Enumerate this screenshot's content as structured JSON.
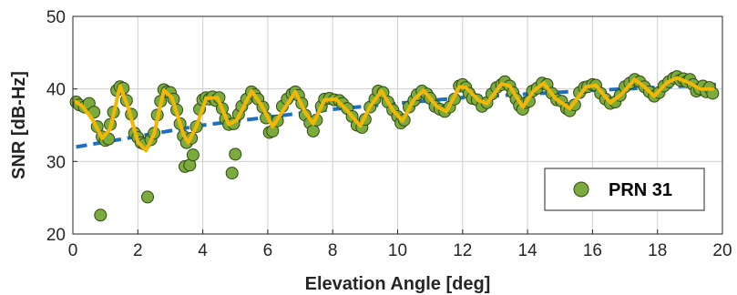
{
  "chart_data": {
    "type": "scatter",
    "title": "",
    "xlabel": "Elevation Angle [deg]",
    "ylabel": "SNR [dB-Hz]",
    "xlim": [
      0,
      20
    ],
    "ylim": [
      20,
      50
    ],
    "xticks": [
      0,
      2,
      4,
      6,
      8,
      10,
      12,
      14,
      16,
      18,
      20
    ],
    "yticks": [
      20,
      30,
      40,
      50
    ],
    "grid": true,
    "legend_position": "bottom-right",
    "legend": [
      "PRN 31"
    ],
    "colors": {
      "points_fill": "#7bab3c",
      "points_edge": "#2f4a12",
      "smooth_line": "#f2b705",
      "trend_line": "#1f6fbf",
      "grid": "#cfcfcf"
    },
    "series": [
      {
        "name": "PRN 31",
        "kind": "scatter",
        "points": [
          [
            0.1,
            38.2
          ],
          [
            0.2,
            37.8
          ],
          [
            0.35,
            37.5
          ],
          [
            0.5,
            38.0
          ],
          [
            0.65,
            36.8
          ],
          [
            0.75,
            34.8
          ],
          [
            0.85,
            22.6
          ],
          [
            0.9,
            33.4
          ],
          [
            1.0,
            32.9
          ],
          [
            1.1,
            33.1
          ],
          [
            1.15,
            35.1
          ],
          [
            1.25,
            36.8
          ],
          [
            1.35,
            39.8
          ],
          [
            1.45,
            40.3
          ],
          [
            1.55,
            40.1
          ],
          [
            1.65,
            38.4
          ],
          [
            1.8,
            36.5
          ],
          [
            1.9,
            33.9
          ],
          [
            2.0,
            33.3
          ],
          [
            2.1,
            32.6
          ],
          [
            2.2,
            32.4
          ],
          [
            2.3,
            25.1
          ],
          [
            2.4,
            33.0
          ],
          [
            2.5,
            33.9
          ],
          [
            2.6,
            36.4
          ],
          [
            2.7,
            38.3
          ],
          [
            2.8,
            39.9
          ],
          [
            2.9,
            39.6
          ],
          [
            3.0,
            39.5
          ],
          [
            3.1,
            38.6
          ],
          [
            3.2,
            37.1
          ],
          [
            3.3,
            35.2
          ],
          [
            3.4,
            33.5
          ],
          [
            3.45,
            29.3
          ],
          [
            3.5,
            32.6
          ],
          [
            3.6,
            29.5
          ],
          [
            3.65,
            33.2
          ],
          [
            3.7,
            30.9
          ],
          [
            3.8,
            34.8
          ],
          [
            3.9,
            37.2
          ],
          [
            4.0,
            38.5
          ],
          [
            4.1,
            38.8
          ],
          [
            4.2,
            38.6
          ],
          [
            4.3,
            38.9
          ],
          [
            4.4,
            38.4
          ],
          [
            4.5,
            38.8
          ],
          [
            4.6,
            37.3
          ],
          [
            4.7,
            35.9
          ],
          [
            4.8,
            35.1
          ],
          [
            4.9,
            28.4
          ],
          [
            4.95,
            35.2
          ],
          [
            5.0,
            31.0
          ],
          [
            5.1,
            36.5
          ],
          [
            5.2,
            37.6
          ],
          [
            5.35,
            38.6
          ],
          [
            5.5,
            39.6
          ],
          [
            5.6,
            39.2
          ],
          [
            5.7,
            38.6
          ],
          [
            5.85,
            37.5
          ],
          [
            5.95,
            36.0
          ],
          [
            6.05,
            34.0
          ],
          [
            6.15,
            34.2
          ],
          [
            6.3,
            35.6
          ],
          [
            6.45,
            37.6
          ],
          [
            6.6,
            38.6
          ],
          [
            6.75,
            39.3
          ],
          [
            6.85,
            39.6
          ],
          [
            6.95,
            39.1
          ],
          [
            7.05,
            38.0
          ],
          [
            7.15,
            36.4
          ],
          [
            7.3,
            35.3
          ],
          [
            7.4,
            34.2
          ],
          [
            7.5,
            35.7
          ],
          [
            7.65,
            37.6
          ],
          [
            7.75,
            38.6
          ],
          [
            7.9,
            38.7
          ],
          [
            8.05,
            38.5
          ],
          [
            8.2,
            38.4
          ],
          [
            8.3,
            38.0
          ],
          [
            8.45,
            37.3
          ],
          [
            8.6,
            36.2
          ],
          [
            8.75,
            35.0
          ],
          [
            8.9,
            34.7
          ],
          [
            9.0,
            35.8
          ],
          [
            9.15,
            37.5
          ],
          [
            9.3,
            38.6
          ],
          [
            9.4,
            39.7
          ],
          [
            9.55,
            39.5
          ],
          [
            9.7,
            38.2
          ],
          [
            9.85,
            37.1
          ],
          [
            10.0,
            36.2
          ],
          [
            10.1,
            35.3
          ],
          [
            10.2,
            35.7
          ],
          [
            10.35,
            37.5
          ],
          [
            10.5,
            38.4
          ],
          [
            10.6,
            39.2
          ],
          [
            10.75,
            39.7
          ],
          [
            10.9,
            39.3
          ],
          [
            11.0,
            38.7
          ],
          [
            11.15,
            37.6
          ],
          [
            11.3,
            37.2
          ],
          [
            11.45,
            36.9
          ],
          [
            11.6,
            37.5
          ],
          [
            11.75,
            38.6
          ],
          [
            11.9,
            40.4
          ],
          [
            12.0,
            40.6
          ],
          [
            12.1,
            40.2
          ],
          [
            12.2,
            39.4
          ],
          [
            12.3,
            38.7
          ],
          [
            12.45,
            38.5
          ],
          [
            12.6,
            37.6
          ],
          [
            12.75,
            38.1
          ],
          [
            12.9,
            39.3
          ],
          [
            13.05,
            40.2
          ],
          [
            13.2,
            40.6
          ],
          [
            13.3,
            41.0
          ],
          [
            13.45,
            40.4
          ],
          [
            13.55,
            39.5
          ],
          [
            13.65,
            38.6
          ],
          [
            13.75,
            37.7
          ],
          [
            13.85,
            37.2
          ],
          [
            13.95,
            38.1
          ],
          [
            14.05,
            38.3
          ],
          [
            14.15,
            39.7
          ],
          [
            14.3,
            40.1
          ],
          [
            14.45,
            40.8
          ],
          [
            14.6,
            40.6
          ],
          [
            14.75,
            39.4
          ],
          [
            14.9,
            38.5
          ],
          [
            15.05,
            38.3
          ],
          [
            15.2,
            37.3
          ],
          [
            15.3,
            37.0
          ],
          [
            15.45,
            37.8
          ],
          [
            15.6,
            39.5
          ],
          [
            15.75,
            40.2
          ],
          [
            15.85,
            40.3
          ],
          [
            16.0,
            40.6
          ],
          [
            16.1,
            40.5
          ],
          [
            16.25,
            39.4
          ],
          [
            16.4,
            38.6
          ],
          [
            16.55,
            38.0
          ],
          [
            16.7,
            38.2
          ],
          [
            16.85,
            39.1
          ],
          [
            17.0,
            40.3
          ],
          [
            17.15,
            40.8
          ],
          [
            17.3,
            41.3
          ],
          [
            17.45,
            41.0
          ],
          [
            17.6,
            40.3
          ],
          [
            17.75,
            39.6
          ],
          [
            17.9,
            39.0
          ],
          [
            18.05,
            39.5
          ],
          [
            18.2,
            40.4
          ],
          [
            18.35,
            41.0
          ],
          [
            18.5,
            41.5
          ],
          [
            18.6,
            41.7
          ],
          [
            18.7,
            41.2
          ],
          [
            18.8,
            41.4
          ],
          [
            18.9,
            41.0
          ],
          [
            19.0,
            41.3
          ],
          [
            19.1,
            40.6
          ],
          [
            19.2,
            39.7
          ],
          [
            19.3,
            40.0
          ],
          [
            19.4,
            40.4
          ],
          [
            19.5,
            39.6
          ],
          [
            19.6,
            40.2
          ],
          [
            19.7,
            39.4
          ]
        ]
      },
      {
        "kind": "line",
        "style": "solid",
        "points": [
          [
            0.1,
            38.2
          ],
          [
            0.3,
            37.6
          ],
          [
            0.6,
            35.8
          ],
          [
            0.9,
            33.2
          ],
          [
            1.15,
            34.5
          ],
          [
            1.45,
            40.4
          ],
          [
            1.7,
            37.5
          ],
          [
            2.0,
            32.7
          ],
          [
            2.25,
            31.5
          ],
          [
            2.5,
            33.8
          ],
          [
            2.8,
            39.8
          ],
          [
            3.05,
            38.8
          ],
          [
            3.4,
            33.8
          ],
          [
            3.55,
            32.6
          ],
          [
            3.8,
            34.8
          ],
          [
            4.1,
            38.7
          ],
          [
            4.45,
            38.8
          ],
          [
            4.8,
            35.1
          ],
          [
            5.05,
            35.7
          ],
          [
            5.5,
            39.7
          ],
          [
            5.8,
            37.8
          ],
          [
            6.15,
            34.8
          ],
          [
            6.5,
            37.2
          ],
          [
            6.85,
            39.6
          ],
          [
            7.15,
            36.8
          ],
          [
            7.4,
            35.2
          ],
          [
            7.75,
            38.5
          ],
          [
            8.1,
            38.6
          ],
          [
            8.45,
            37.0
          ],
          [
            8.85,
            34.9
          ],
          [
            9.15,
            37.6
          ],
          [
            9.5,
            39.7
          ],
          [
            9.85,
            37.1
          ],
          [
            10.15,
            35.6
          ],
          [
            10.5,
            38.5
          ],
          [
            10.8,
            39.8
          ],
          [
            11.2,
            37.6
          ],
          [
            11.5,
            36.9
          ],
          [
            11.9,
            40.3
          ],
          [
            12.1,
            40.2
          ],
          [
            12.5,
            38.4
          ],
          [
            12.75,
            38.0
          ],
          [
            13.2,
            40.7
          ],
          [
            13.45,
            40.4
          ],
          [
            13.85,
            37.5
          ],
          [
            14.2,
            39.8
          ],
          [
            14.5,
            40.8
          ],
          [
            14.85,
            38.7
          ],
          [
            15.3,
            37.3
          ],
          [
            15.8,
            40.3
          ],
          [
            16.1,
            40.5
          ],
          [
            16.55,
            38.1
          ],
          [
            16.9,
            39.3
          ],
          [
            17.3,
            41.3
          ],
          [
            17.6,
            40.3
          ],
          [
            17.9,
            39.0
          ],
          [
            18.3,
            40.9
          ],
          [
            18.6,
            41.5
          ],
          [
            19.0,
            40.8
          ],
          [
            19.3,
            40.0
          ],
          [
            19.7,
            40.0
          ]
        ]
      },
      {
        "kind": "line",
        "style": "dashed",
        "points": [
          [
            0.1,
            32.0
          ],
          [
            4,
            35.0
          ],
          [
            8,
            37.2
          ],
          [
            12,
            38.8
          ],
          [
            16,
            39.8
          ],
          [
            19.8,
            40.6
          ]
        ]
      }
    ]
  }
}
